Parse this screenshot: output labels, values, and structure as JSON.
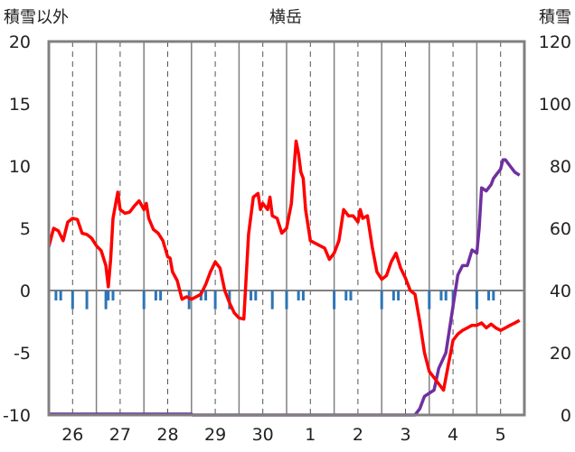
{
  "chart_data": {
    "type": "line",
    "title": "横岳",
    "ylabel_left": "積雪以外",
    "ylabel_right": "積雪",
    "x_tick_labels": [
      "26",
      "27",
      "28",
      "29",
      "30",
      "1",
      "2",
      "3",
      "4",
      "5"
    ],
    "xlim": [
      25.5,
      35.5
    ],
    "ylim_left": [
      -10,
      20
    ],
    "ylim_right": [
      0,
      120
    ],
    "y_ticks_left": [
      "20",
      "15",
      "10",
      "5",
      "0",
      "-5",
      "-10"
    ],
    "y_ticks_right": [
      "120",
      "100",
      "80",
      "60",
      "40",
      "20",
      "0"
    ],
    "grid": "vertical dashed, per day",
    "colors": {
      "temperature": "#ff0000",
      "snow_depth": "#7030a0",
      "precipitation": "#2e75b6",
      "frame": "#808080"
    },
    "series": [
      {
        "axis": "left",
        "values": [
          [
            25.5,
            3.5
          ],
          [
            25.6,
            5.0
          ],
          [
            25.7,
            4.8
          ],
          [
            25.8,
            4.0
          ],
          [
            25.9,
            5.5
          ],
          [
            26.0,
            5.8
          ],
          [
            26.1,
            5.7
          ],
          [
            26.2,
            4.6
          ],
          [
            26.3,
            4.5
          ],
          [
            26.4,
            4.2
          ],
          [
            26.5,
            3.6
          ],
          [
            26.6,
            3.2
          ],
          [
            26.7,
            2.0
          ],
          [
            26.75,
            0.3
          ],
          [
            26.8,
            2.5
          ],
          [
            26.85,
            5.8
          ],
          [
            26.95,
            7.9
          ],
          [
            27.0,
            6.5
          ],
          [
            27.1,
            6.2
          ],
          [
            27.2,
            6.3
          ],
          [
            27.3,
            6.8
          ],
          [
            27.4,
            7.2
          ],
          [
            27.5,
            6.5
          ],
          [
            27.55,
            7.0
          ],
          [
            27.6,
            5.8
          ],
          [
            27.7,
            4.9
          ],
          [
            27.8,
            4.6
          ],
          [
            27.9,
            4.0
          ],
          [
            28.0,
            2.7
          ],
          [
            28.05,
            2.6
          ],
          [
            28.1,
            1.5
          ],
          [
            28.2,
            0.8
          ],
          [
            28.3,
            -0.7
          ],
          [
            28.4,
            -0.5
          ],
          [
            28.5,
            -0.7
          ],
          [
            28.6,
            -0.5
          ],
          [
            28.7,
            -0.3
          ],
          [
            28.8,
            0.5
          ],
          [
            28.9,
            1.5
          ],
          [
            29.0,
            2.3
          ],
          [
            29.1,
            1.8
          ],
          [
            29.2,
            0.0
          ],
          [
            29.3,
            -1.0
          ],
          [
            29.4,
            -1.8
          ],
          [
            29.5,
            -2.2
          ],
          [
            29.6,
            -2.3
          ],
          [
            29.7,
            4.5
          ],
          [
            29.8,
            7.5
          ],
          [
            29.9,
            7.8
          ],
          [
            29.95,
            6.5
          ],
          [
            30.0,
            7.0
          ],
          [
            30.1,
            6.5
          ],
          [
            30.15,
            7.5
          ],
          [
            30.2,
            6.0
          ],
          [
            30.3,
            5.8
          ],
          [
            30.4,
            4.6
          ],
          [
            30.5,
            5.0
          ],
          [
            30.6,
            7.0
          ],
          [
            30.7,
            12.0
          ],
          [
            30.75,
            11.0
          ],
          [
            30.8,
            9.5
          ],
          [
            30.85,
            9.0
          ],
          [
            30.9,
            6.5
          ],
          [
            31.0,
            4.0
          ],
          [
            31.1,
            3.8
          ],
          [
            31.2,
            3.6
          ],
          [
            31.3,
            3.4
          ],
          [
            31.4,
            2.5
          ],
          [
            31.5,
            3.0
          ],
          [
            31.6,
            4.0
          ],
          [
            31.7,
            6.5
          ],
          [
            31.8,
            6.0
          ],
          [
            31.9,
            6.0
          ],
          [
            32.0,
            5.5
          ],
          [
            32.05,
            6.5
          ],
          [
            32.1,
            5.8
          ],
          [
            32.2,
            6.0
          ],
          [
            32.3,
            3.5
          ],
          [
            32.4,
            1.5
          ],
          [
            32.5,
            0.9
          ],
          [
            32.6,
            1.2
          ],
          [
            32.7,
            2.3
          ],
          [
            32.8,
            3.0
          ],
          [
            32.9,
            1.8
          ],
          [
            33.0,
            1.0
          ],
          [
            33.1,
            0.0
          ],
          [
            33.2,
            -0.3
          ],
          [
            33.3,
            -2.5
          ],
          [
            33.4,
            -5.0
          ],
          [
            33.5,
            -6.5
          ],
          [
            33.6,
            -7.0
          ],
          [
            33.7,
            -7.5
          ],
          [
            33.8,
            -8.0
          ],
          [
            33.9,
            -6.0
          ],
          [
            34.0,
            -4.0
          ],
          [
            34.1,
            -3.5
          ],
          [
            34.2,
            -3.2
          ],
          [
            34.3,
            -3.0
          ],
          [
            34.4,
            -2.8
          ],
          [
            34.5,
            -2.8
          ],
          [
            34.6,
            -2.6
          ],
          [
            34.7,
            -3.0
          ],
          [
            34.8,
            -2.7
          ],
          [
            34.9,
            -3.0
          ],
          [
            35.0,
            -3.2
          ],
          [
            35.1,
            -3.0
          ],
          [
            35.2,
            -2.8
          ],
          [
            35.3,
            -2.6
          ],
          [
            35.4,
            -2.4
          ]
        ]
      },
      {
        "axis": "right",
        "values": [
          [
            25.5,
            0.3
          ],
          [
            28.5,
            0.3
          ],
          [
            28.52,
            0
          ],
          [
            33.2,
            0
          ],
          [
            33.3,
            2
          ],
          [
            33.4,
            6
          ],
          [
            33.6,
            8
          ],
          [
            33.7,
            15
          ],
          [
            33.85,
            20
          ],
          [
            34.0,
            35
          ],
          [
            34.1,
            45
          ],
          [
            34.2,
            48
          ],
          [
            34.3,
            48
          ],
          [
            34.4,
            53
          ],
          [
            34.5,
            52
          ],
          [
            34.55,
            60
          ],
          [
            34.6,
            73
          ],
          [
            34.7,
            72
          ],
          [
            34.8,
            74
          ],
          [
            34.85,
            76
          ],
          [
            34.9,
            77
          ],
          [
            35.0,
            79
          ],
          [
            35.05,
            82
          ],
          [
            35.1,
            82
          ],
          [
            35.2,
            80
          ],
          [
            35.3,
            78
          ],
          [
            35.4,
            77
          ]
        ]
      },
      {
        "axis": "left",
        "type": "bar",
        "values": [
          [
            25.5,
            -1.5
          ],
          [
            25.65,
            -0.8
          ],
          [
            25.75,
            -0.8
          ],
          [
            26.0,
            -1.5
          ],
          [
            26.3,
            -1.5
          ],
          [
            26.7,
            -1.5
          ],
          [
            26.75,
            -0.8
          ],
          [
            26.85,
            -0.8
          ],
          [
            27.5,
            -1.5
          ],
          [
            27.75,
            -0.8
          ],
          [
            27.85,
            -0.8
          ],
          [
            28.45,
            -1.5
          ],
          [
            28.7,
            -0.8
          ],
          [
            28.8,
            -0.8
          ],
          [
            29.0,
            -1.5
          ],
          [
            29.3,
            -1.5
          ],
          [
            29.75,
            -0.8
          ],
          [
            29.85,
            -0.8
          ],
          [
            30.2,
            -1.5
          ],
          [
            30.5,
            -1.5
          ],
          [
            30.75,
            -0.8
          ],
          [
            30.85,
            -0.8
          ],
          [
            31.5,
            -1.5
          ],
          [
            31.75,
            -0.8
          ],
          [
            31.85,
            -0.8
          ],
          [
            32.5,
            -1.5
          ],
          [
            32.75,
            -0.8
          ],
          [
            32.85,
            -0.8
          ],
          [
            33.5,
            -1.5
          ],
          [
            33.75,
            -0.8
          ],
          [
            33.85,
            -0.8
          ],
          [
            34.0,
            -1.5
          ],
          [
            34.5,
            -1.5
          ],
          [
            34.75,
            -0.8
          ],
          [
            34.85,
            -0.8
          ],
          [
            35.5,
            -1.5
          ]
        ]
      }
    ]
  }
}
